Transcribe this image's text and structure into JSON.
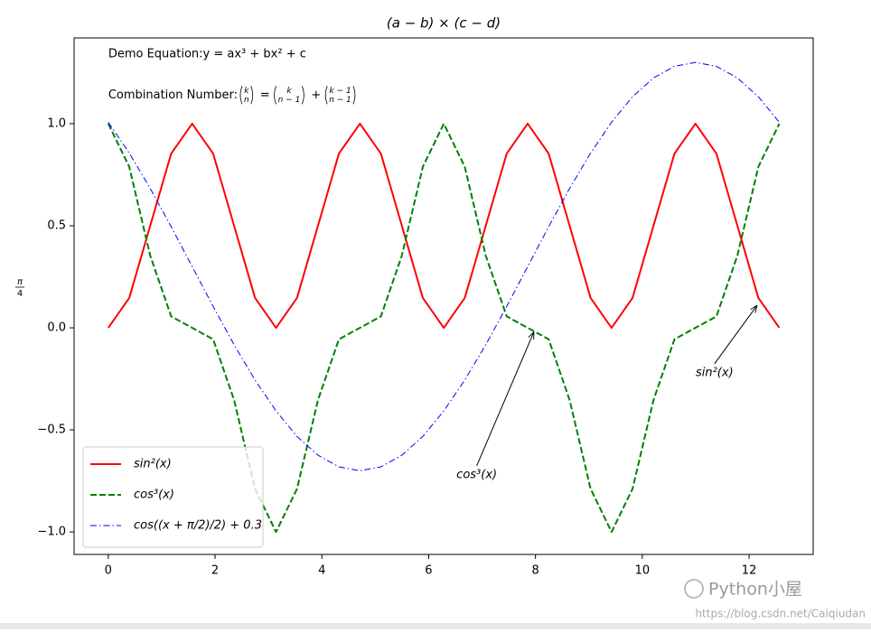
{
  "chart_data": {
    "type": "line",
    "title": "(a − b) × (c − d)",
    "ylabel": {
      "numerator": "π",
      "denominator": "4"
    },
    "x": [
      0,
      0.3927,
      0.7854,
      1.1781,
      1.5708,
      1.9635,
      2.3562,
      2.7489,
      3.1416,
      3.5343,
      3.927,
      4.3197,
      4.7124,
      5.1051,
      5.4978,
      5.8905,
      6.2832,
      6.6759,
      7.0686,
      7.4613,
      7.854,
      8.2467,
      8.6394,
      9.0321,
      9.4248,
      9.8175,
      10.2102,
      10.6029,
      10.9956,
      11.3883,
      11.781,
      12.1737,
      12.5664
    ],
    "series": [
      {
        "name": "sin²(x)",
        "color": "#ff0000",
        "linestyle": "solid",
        "linewidth": 2,
        "values": [
          0,
          0.1464,
          0.5,
          0.8536,
          1,
          0.8536,
          0.5,
          0.1464,
          0,
          0.1464,
          0.5,
          0.8536,
          1,
          0.8536,
          0.5,
          0.1464,
          0,
          0.1464,
          0.5,
          0.8536,
          1,
          0.8536,
          0.5,
          0.1464,
          0,
          0.1464,
          0.5,
          0.8536,
          1,
          0.8536,
          0.5,
          0.1464,
          0
        ]
      },
      {
        "name": "cos³(x)",
        "color": "#008000",
        "linestyle": "dashed",
        "linewidth": 2,
        "values": [
          1,
          0.7886,
          0.3536,
          0.056,
          0,
          -0.056,
          -0.3536,
          -0.7886,
          -1,
          -0.7886,
          -0.3536,
          -0.056,
          0,
          0.056,
          0.3536,
          0.7886,
          1,
          0.7886,
          0.3536,
          0.056,
          0,
          -0.056,
          -0.3536,
          -0.7886,
          -1,
          -0.7886,
          -0.3536,
          -0.056,
          0,
          0.056,
          0.3536,
          0.7886,
          1
        ]
      },
      {
        "name": "cos((x + π/2)/2) + 0.3",
        "color": "#0000ff",
        "linestyle": "dashdot",
        "linewidth": 1,
        "values": [
          1.007,
          0.856,
          0.683,
          0.495,
          0.3,
          0.105,
          -0.083,
          -0.256,
          -0.407,
          -0.532,
          -0.624,
          -0.681,
          -0.7,
          -0.681,
          -0.624,
          -0.532,
          -0.407,
          -0.256,
          -0.083,
          0.105,
          0.3,
          0.495,
          0.683,
          0.856,
          1.007,
          1.132,
          1.224,
          1.281,
          1.3,
          1.281,
          1.224,
          1.132,
          1.007
        ]
      }
    ],
    "xlim": [
      -0.64,
      13.2
    ],
    "ylim": [
      -1.11,
      1.42
    ],
    "xticks": [
      0,
      2,
      4,
      6,
      8,
      10,
      12
    ],
    "yticks": [
      {
        "value": -1,
        "label": "−1.0"
      },
      {
        "value": -0.5,
        "label": "−0.5"
      },
      {
        "value": 0,
        "label": "0.0"
      },
      0.5,
      {
        "value": 1,
        "label": "1.0"
      }
    ],
    "legend": "lower left",
    "texts": [
      {
        "text": "Demo Equation:y = ax³ + bx² + c",
        "x": 0,
        "y": 1.34
      },
      {
        "prefix": "Combination Number:",
        "x": 0,
        "y": 1.14,
        "binomials": [
          [
            "k",
            "n"
          ],
          [
            "k",
            "n − 1"
          ],
          [
            "k − 1",
            "n − 1"
          ]
        ],
        "operators": [
          "=",
          "+"
        ]
      }
    ],
    "annotations": [
      {
        "text": "cos³(x)",
        "xy": [
          7.97,
          -0.02
        ],
        "xytext": [
          6.52,
          -0.72
        ]
      },
      {
        "text": "sin²(x)",
        "xy": [
          12.15,
          0.11
        ],
        "xytext": [
          11.0,
          -0.22
        ]
      }
    ]
  },
  "watermark": {
    "name": "Python小屋",
    "url": "https://blog.csdn.net/Caiqiudan"
  }
}
